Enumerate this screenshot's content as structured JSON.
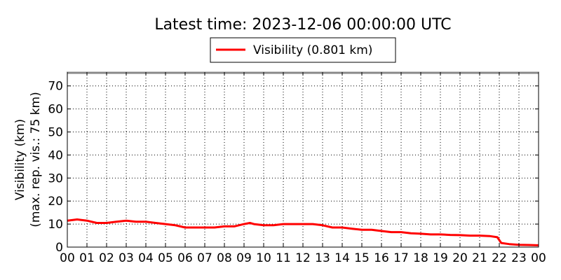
{
  "chart_data": {
    "type": "line",
    "title": "Latest time: 2023-12-06 00:00:00 UTC",
    "xlabel": "",
    "ylabel": [
      "Visibility (km)",
      "(max. rep. vis.: 75 km)"
    ],
    "x_ticks": [
      "00",
      "01",
      "02",
      "03",
      "04",
      "05",
      "06",
      "07",
      "08",
      "09",
      "10",
      "11",
      "12",
      "13",
      "14",
      "15",
      "16",
      "17",
      "18",
      "19",
      "20",
      "21",
      "22",
      "23",
      "00"
    ],
    "xlim": [
      0,
      24
    ],
    "ylim": [
      0,
      76
    ],
    "y_ticks": [
      0,
      10,
      20,
      30,
      40,
      50,
      60,
      70
    ],
    "grid": true,
    "legend_position": "top-center",
    "series": [
      {
        "name": "Visibility (0.801 km)",
        "color": "#ff0000",
        "x": [
          0,
          0.5,
          1,
          1.5,
          2,
          2.5,
          3,
          3.5,
          4,
          4.5,
          5,
          5.5,
          6,
          6.5,
          7,
          7.5,
          8,
          8.5,
          9,
          9.3,
          9.5,
          10,
          10.5,
          11,
          11.5,
          12,
          12.5,
          13,
          13.5,
          14,
          14.5,
          15,
          15.5,
          16,
          16.5,
          17,
          17.5,
          18,
          18.5,
          19,
          19.5,
          20,
          20.5,
          21,
          21.5,
          21.9,
          22.1,
          22.5,
          23,
          23.5,
          24
        ],
        "y": [
          11.5,
          12,
          11.5,
          10.5,
          10.5,
          11,
          11.5,
          11,
          11,
          10.5,
          10,
          9.5,
          8.5,
          8.5,
          8.5,
          8.5,
          9,
          9,
          10,
          10.5,
          10,
          9.5,
          9.5,
          10,
          10,
          10,
          10,
          9.5,
          8.5,
          8.5,
          8,
          7.5,
          7.5,
          7,
          6.5,
          6.5,
          6,
          5.8,
          5.5,
          5.5,
          5.3,
          5.2,
          5,
          5,
          4.8,
          4.3,
          1.8,
          1.3,
          1,
          0.9,
          0.8
        ]
      }
    ]
  }
}
